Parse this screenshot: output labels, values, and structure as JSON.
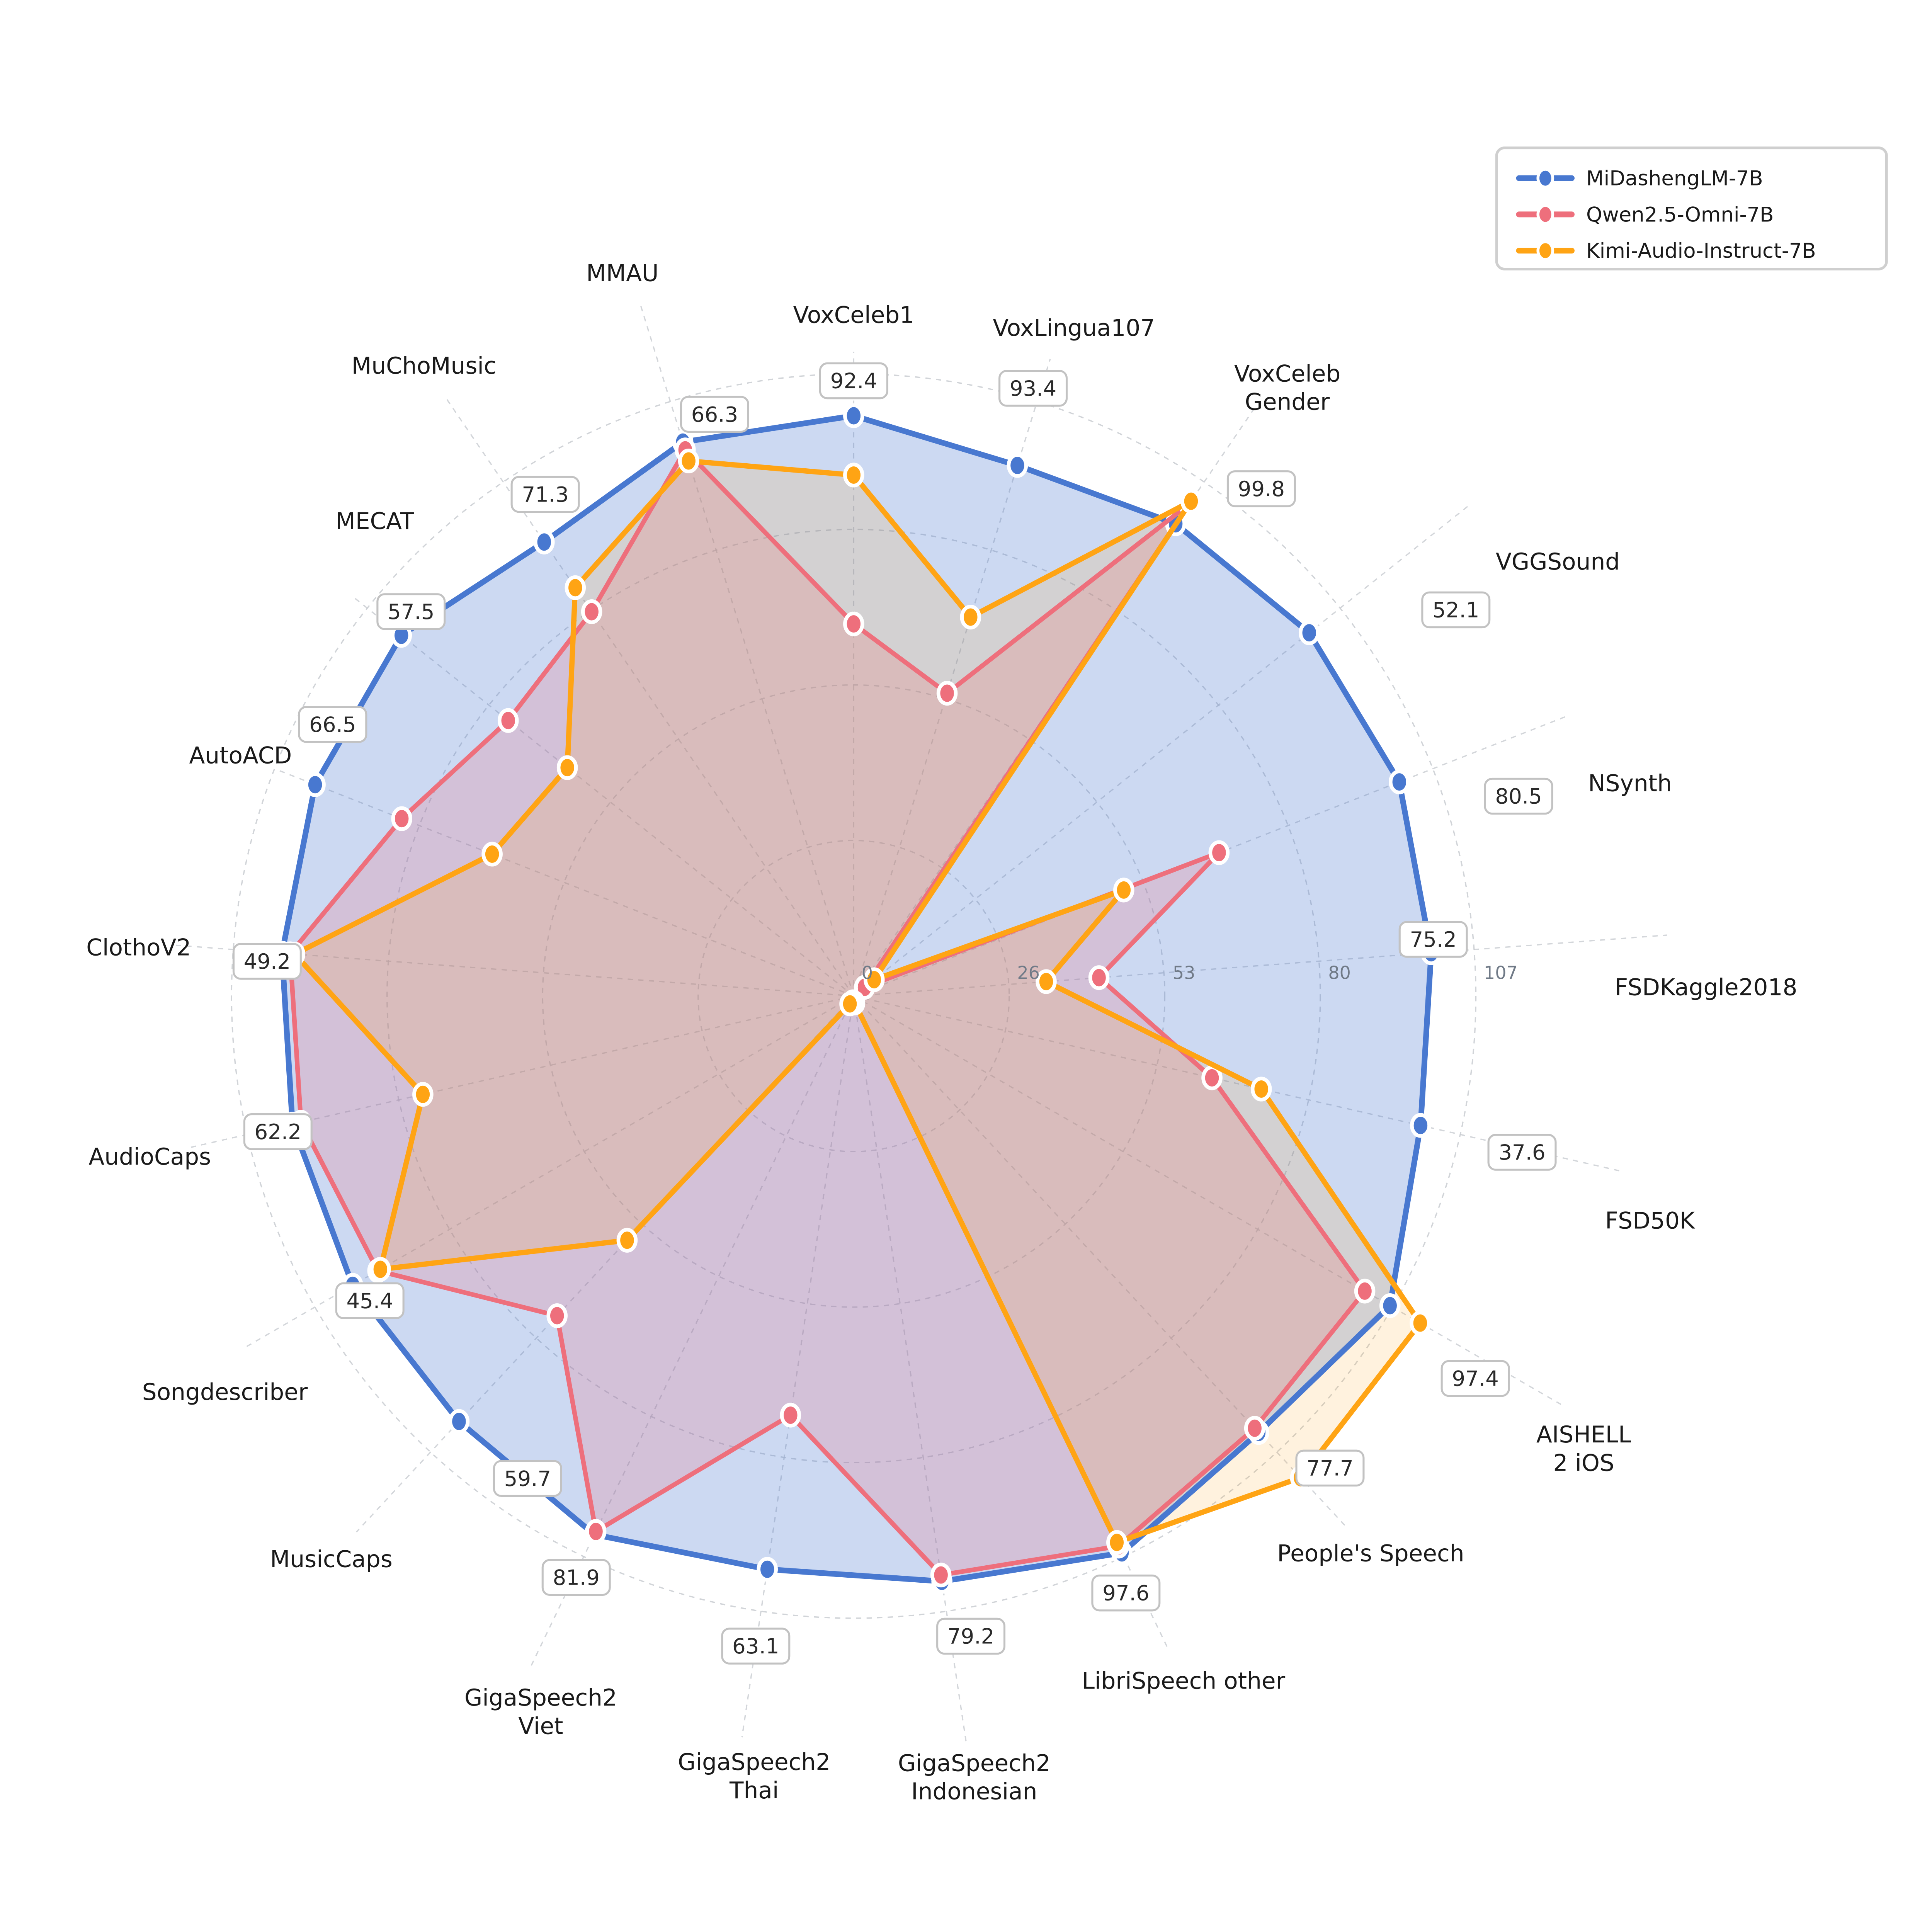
{
  "figure": {
    "background": "#ffffff"
  },
  "legend": {
    "position": "top-right",
    "entries": [
      {
        "label": "MiDashengLM-7B"
      },
      {
        "label": "Qwen2.5-Omni-7B"
      },
      {
        "label": "Kimi-Audio-Instruct-7B"
      }
    ]
  },
  "colors": {
    "blue": "#4878D0",
    "red": "#EE6F7C",
    "orange": "#FFA414",
    "blue_fill": "rgba(72,120,208,0.28)",
    "red_fill": "rgba(238,111,124,0.22)",
    "orange_fill": "rgba(255,164,20,0.14)",
    "grid": "#C9CCD1",
    "tick_text": "#707A87",
    "label_text": "#1A1A1A",
    "box_text": "#2A2A2A",
    "box_border": "#C2C2C2",
    "box_fill": "#FFFFFF",
    "legend_border": "#CFCFCF",
    "marker_ring": "#FFFFFF"
  },
  "chart_data": {
    "type": "radar",
    "n_axes": 21,
    "rmax": 107,
    "grid": true,
    "start_angle_deg": 90,
    "direction": "clockwise",
    "radial_ticks": [
      {
        "value": 0,
        "label": "0"
      },
      {
        "value": 26.75,
        "label": "26"
      },
      {
        "value": 53.5,
        "label": "53"
      },
      {
        "value": 80.25,
        "label": "80"
      },
      {
        "value": 107,
        "label": "107"
      }
    ],
    "categories": [
      {
        "label": [
          "VoxCeleb1"
        ],
        "displayed_value": "92.4"
      },
      {
        "label": [
          "VoxLingua107"
        ],
        "displayed_value": "93.4"
      },
      {
        "label": [
          "VoxCeleb",
          "Gender"
        ],
        "displayed_value": "99.8"
      },
      {
        "label": [
          "VGGSound"
        ],
        "displayed_value": "52.1"
      },
      {
        "label": [
          "NSynth"
        ],
        "displayed_value": "80.5"
      },
      {
        "label": [
          "FSDKaggle2018"
        ],
        "displayed_value": "75.2"
      },
      {
        "label": [
          "FSD50K"
        ],
        "displayed_value": "37.6"
      },
      {
        "label": [
          "AISHELL",
          "2 iOS"
        ],
        "displayed_value": "97.4"
      },
      {
        "label": [
          "People's Speech"
        ],
        "displayed_value": "77.7"
      },
      {
        "label": [
          "LibriSpeech other"
        ],
        "displayed_value": "97.6"
      },
      {
        "label": [
          "GigaSpeech2",
          "Indonesian"
        ],
        "displayed_value": "79.2"
      },
      {
        "label": [
          "GigaSpeech2",
          "Thai"
        ],
        "displayed_value": "63.1"
      },
      {
        "label": [
          "GigaSpeech2",
          "Viet"
        ],
        "displayed_value": "81.9"
      },
      {
        "label": [
          "MusicCaps"
        ],
        "displayed_value": "59.7"
      },
      {
        "label": [
          "Songdescriber"
        ],
        "displayed_value": "45.4"
      },
      {
        "label": [
          "AudioCaps"
        ],
        "displayed_value": "62.2"
      },
      {
        "label": [
          "ClothoV2"
        ],
        "displayed_value": "49.2"
      },
      {
        "label": [
          "AutoACD"
        ],
        "displayed_value": "66.5"
      },
      {
        "label": [
          "MECAT"
        ],
        "displayed_value": "57.5"
      },
      {
        "label": [
          "MuChoMusic"
        ],
        "displayed_value": "71.3"
      },
      {
        "label": [
          "MMAU"
        ],
        "displayed_value": "66.3"
      }
    ],
    "series": [
      {
        "name": "MiDashengLM-7B",
        "color_key": "blue",
        "fill_key": "blue_fill",
        "values": [
          99.8,
          95.5,
          98.3,
          100.2,
          100.8,
          99.6,
          100.0,
          106.5,
          102.4,
          106.3,
          101.8,
          99.7,
          102.8,
          99.8,
          99.5,
          99.0,
          98.6,
          99.5,
          99.5,
          94.5,
          99.7
        ]
      },
      {
        "name": "Qwen2.5-Omni-7B",
        "color_key": "red",
        "fill_key": "red_fill",
        "values": [
          64.0,
          54.5,
          102.4,
          2.4,
          67.5,
          42.3,
          63.2,
          101.5,
          101.4,
          105.0,
          100.7,
          72.9,
          102.2,
          75.0,
          94.5,
          97.5,
          97.2,
          83.5,
          76.0,
          80.0,
          98.3
        ]
      },
      {
        "name": "Kimi-Audio-Instruct-7B",
        "color_key": "orange",
        "fill_key": "orange_fill",
        "values": [
          89.6,
          68.2,
          103.0,
          4.5,
          49.9,
          33.2,
          71.9,
          112.5,
          113.0,
          104.3,
          1.2,
          1.0,
          1.5,
          57.3,
          94.0,
          76.0,
          96.4,
          66.8,
          63.0,
          85.0,
          96.3
        ]
      }
    ],
    "layout": {
      "center": [
        648.0,
        656.8
      ],
      "radius_at_rmax": 472.25,
      "label_pos": [
        [
          517,
          0
        ],
        [
          534,
          -1.1
        ],
        [
          567,
          -1.2
        ],
        [
          628,
          -6.9
        ],
        [
          611,
          -6.1
        ],
        [
          647,
          -3.7
        ],
        [
          628,
          -2.9
        ],
        [
          652,
          -1.8
        ],
        [
          577,
          0
        ],
        [
          577,
          0
        ],
        [
          600,
          0.2
        ],
        [
          597,
          1.3
        ],
        [
          593,
          2.1
        ],
        [
          583,
          0
        ],
        [
          564,
          2.2
        ],
        [
          548,
          0
        ],
        [
          544,
          0.4
        ],
        [
          500,
          0
        ],
        [
          512,
          -6.2
        ],
        [
          579,
          0
        ],
        [
          576,
          0.6
        ]
      ],
      "box_pos": [
        [
          467,
          0
        ],
        [
          481,
          0.7
        ],
        [
          494,
          -4.5
        ],
        [
          543,
          -5.9
        ],
        [
          527,
          -4.7
        ],
        [
          442,
          1.3
        ],
        [
          521,
          -0.3
        ],
        [
          554,
          -1.6
        ],
        [
          509,
          2.4
        ],
        [
          498,
          -1.2
        ],
        [
          494,
          1.8
        ],
        [
          499,
          0
        ],
        [
          489,
          0.2
        ],
        [
          442,
          8.8
        ],
        [
          434,
          2.2
        ],
        [
          449,
          0.4
        ],
        [
          446,
          0.9
        ],
        [
          446,
          -6.1
        ],
        [
          445,
          -2.4
        ],
        [
          447,
          -2.7
        ],
        [
          454,
          -3.7
        ]
      ],
      "legend_box": [
        1136,
        13,
        296,
        92
      ]
    }
  }
}
